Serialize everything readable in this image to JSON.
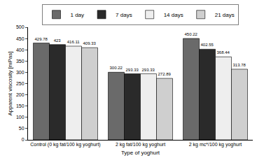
{
  "chart_data": {
    "type": "bar",
    "x_label": "Type of yoghurt",
    "y_label": "Apparent viscosity [mPas]",
    "categories": [
      "Control (0 kg fat/100 kg yoghurt)",
      "2 kg fat/100 kg yoghurt",
      "2 kg mc*/100 kg yoghurt"
    ],
    "series": [
      {
        "name": "1 day",
        "color": "#6a6a6a",
        "values": [
          429.78,
          300.22,
          450.22
        ]
      },
      {
        "name": "7 days",
        "color": "#2a2a2a",
        "values": [
          423,
          293.33,
          402.55
        ]
      },
      {
        "name": "14 days",
        "color": "#eeeeee",
        "values": [
          416.11,
          293.33,
          368.44
        ]
      },
      {
        "name": "21 days",
        "color": "#cfcfcf",
        "values": [
          409.33,
          272.89,
          313.78
        ]
      }
    ],
    "ylim": [
      0,
      500
    ],
    "yticks": [
      0,
      50,
      100,
      150,
      200,
      250,
      300,
      350,
      400,
      450,
      500
    ],
    "grid": false,
    "legend": "top",
    "data_labels": true
  }
}
